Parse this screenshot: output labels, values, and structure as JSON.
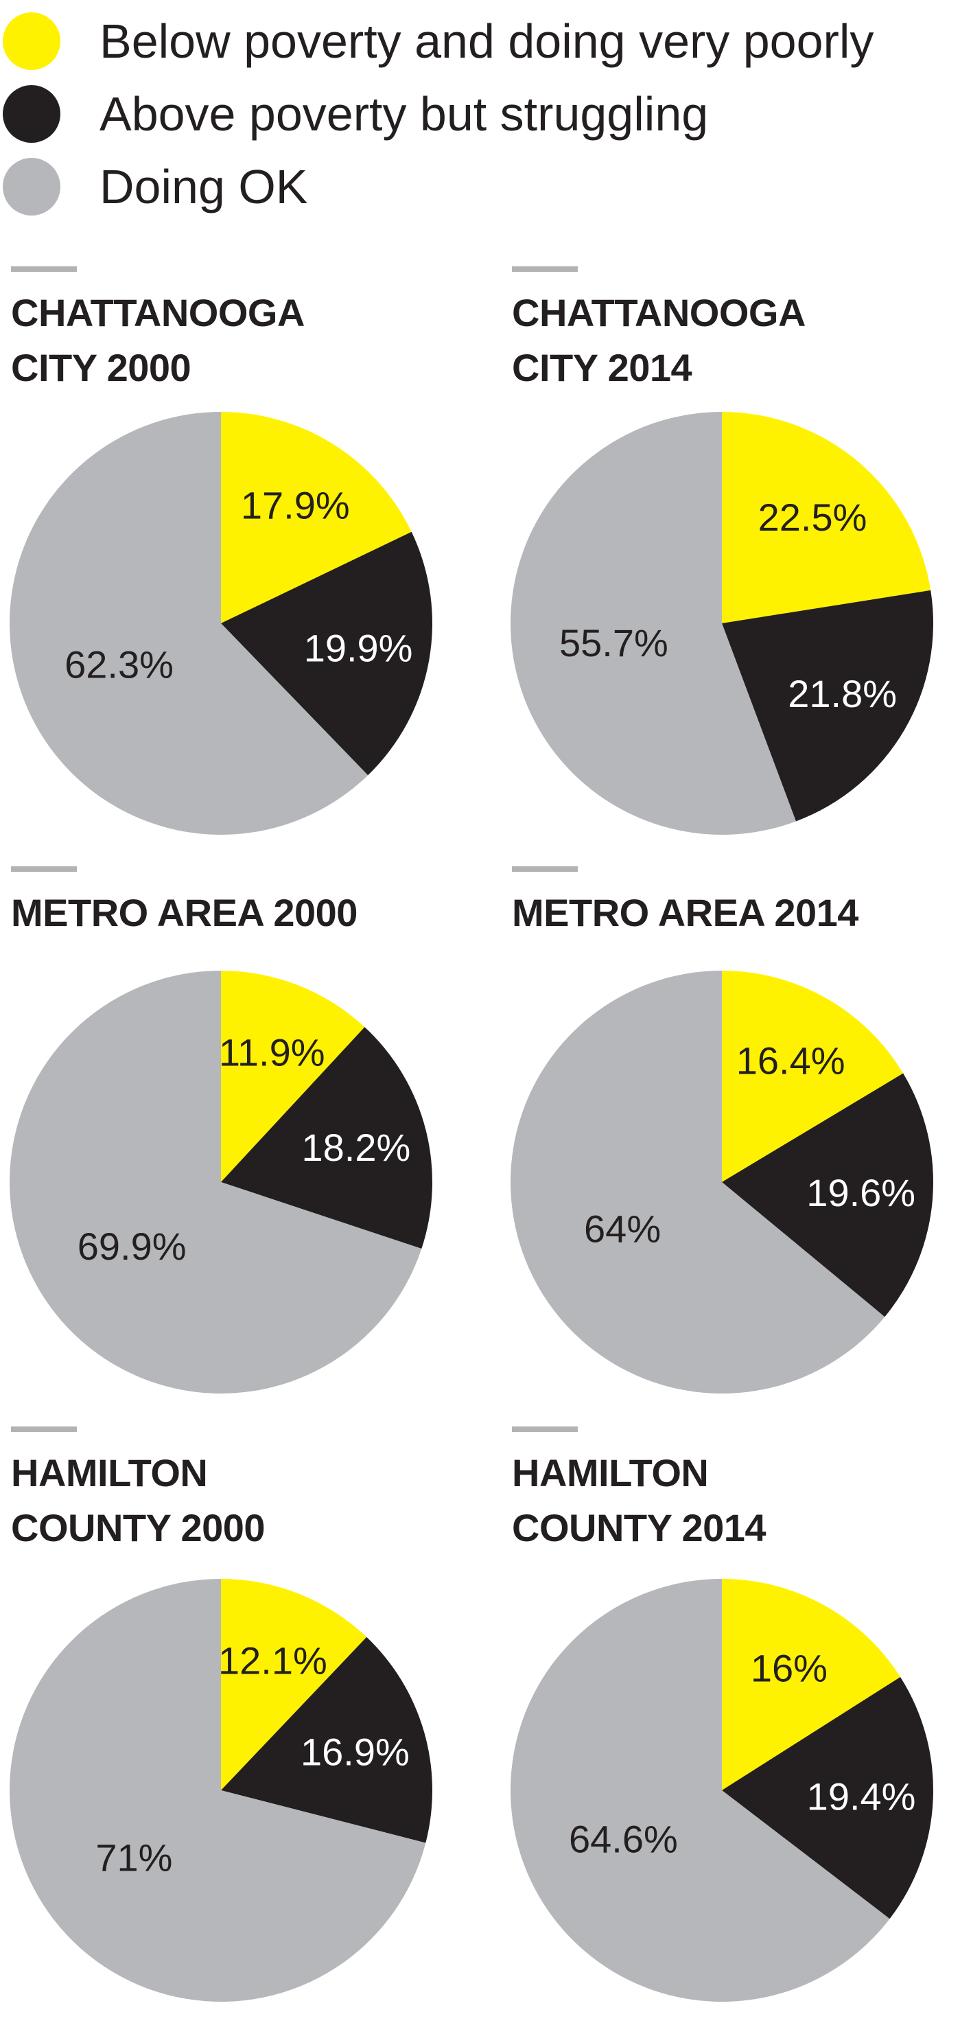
{
  "legend": [
    {
      "label": "Below poverty and doing very poorly",
      "color": "#fff200"
    },
    {
      "label": "Above poverty but struggling",
      "color": "#231f20"
    },
    {
      "label": "Doing OK",
      "color": "#b6b7ba"
    }
  ],
  "colors": {
    "below_poverty": "#fff200",
    "struggling": "#231f20",
    "doing_ok": "#b6b7ba",
    "rule": "#b3b3b3",
    "label_on_dark": "#ffffff",
    "label_on_light": "#231f20"
  },
  "chart_data": [
    {
      "type": "pie",
      "title": "CHATTANOOGA\nCITY 2000",
      "categories": [
        "Below poverty and doing very poorly",
        "Above poverty but struggling",
        "Doing OK"
      ],
      "values": [
        17.9,
        19.9,
        62.3
      ],
      "labels": [
        "17.9%",
        "19.9%",
        "62.3%"
      ]
    },
    {
      "type": "pie",
      "title": "CHATTANOOGA\nCITY 2014",
      "categories": [
        "Below poverty and doing very poorly",
        "Above poverty but struggling",
        "Doing OK"
      ],
      "values": [
        22.5,
        21.8,
        55.7
      ],
      "labels": [
        "22.5%",
        "21.8%",
        "55.7%"
      ]
    },
    {
      "type": "pie",
      "title": "METRO AREA 2000",
      "categories": [
        "Below poverty and doing very poorly",
        "Above poverty but struggling",
        "Doing OK"
      ],
      "values": [
        11.9,
        18.2,
        69.9
      ],
      "labels": [
        "11.9%",
        "18.2%",
        "69.9%"
      ]
    },
    {
      "type": "pie",
      "title": "METRO AREA 2014",
      "categories": [
        "Below poverty and doing very poorly",
        "Above poverty but struggling",
        "Doing OK"
      ],
      "values": [
        16.4,
        19.6,
        64
      ],
      "labels": [
        "16.4%",
        "19.6%",
        "64%"
      ]
    },
    {
      "type": "pie",
      "title": "HAMILTON\nCOUNTY 2000",
      "categories": [
        "Below poverty and doing very poorly",
        "Above poverty but struggling",
        "Doing OK"
      ],
      "values": [
        12.1,
        16.9,
        71
      ],
      "labels": [
        "12.1%",
        "16.9%",
        "71%"
      ]
    },
    {
      "type": "pie",
      "title": "HAMILTON\nCOUNTY 2014",
      "categories": [
        "Below poverty and doing very poorly",
        "Above poverty but struggling",
        "Doing OK"
      ],
      "values": [
        16,
        19.4,
        64.6
      ],
      "labels": [
        "16%",
        "19.4%",
        "64.6%"
      ]
    }
  ]
}
